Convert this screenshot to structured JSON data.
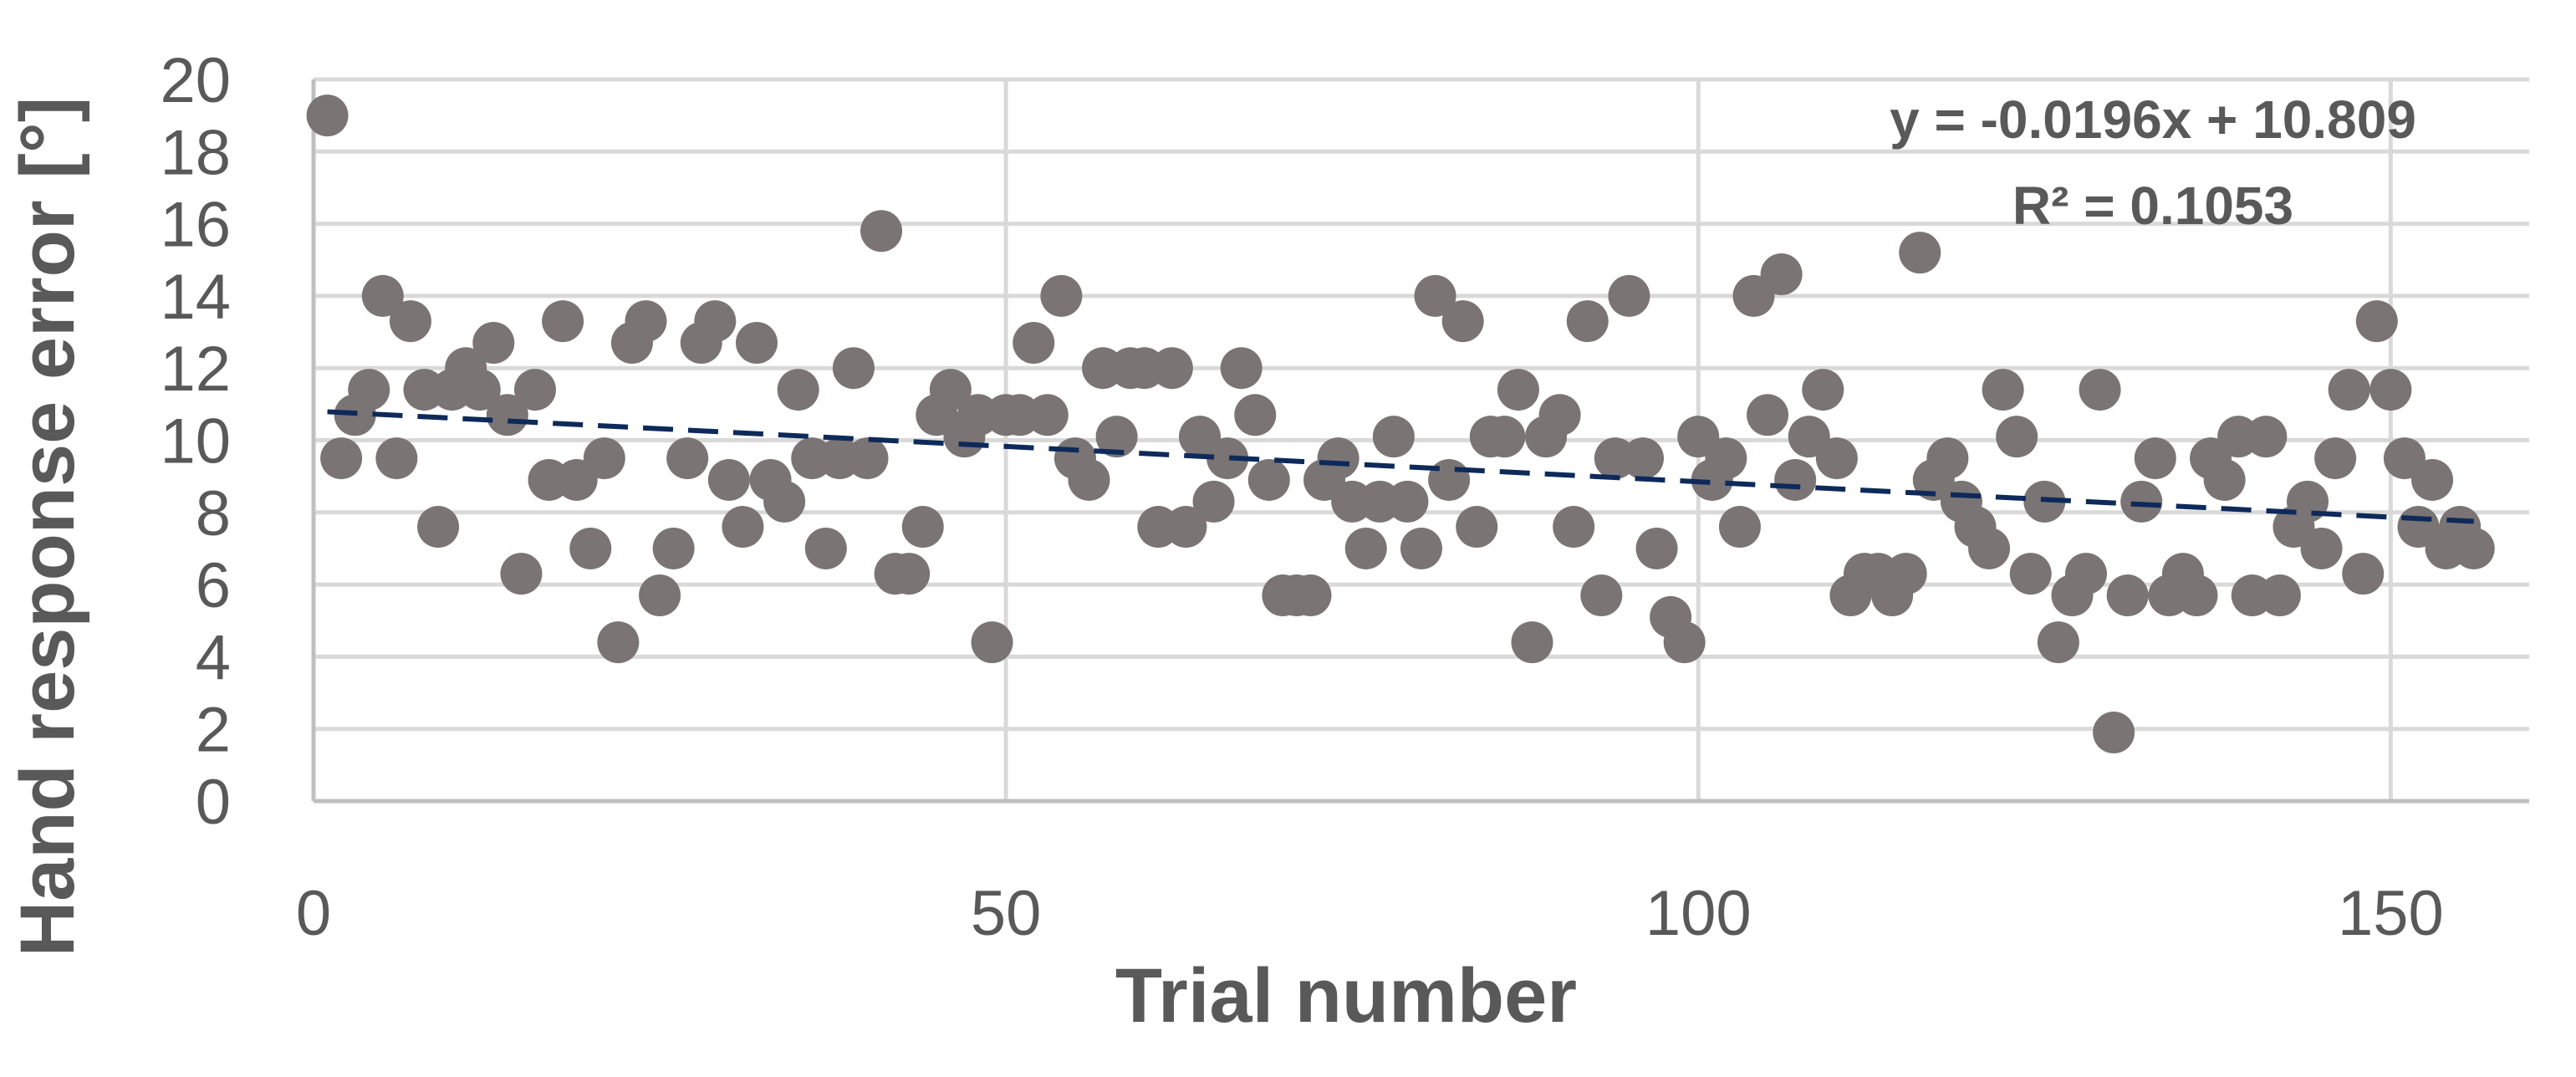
{
  "chart_data": {
    "type": "scatter",
    "xlabel": "Trial number",
    "ylabel": "Hand response error [°]",
    "xlim": [
      0,
      160
    ],
    "ylim": [
      0,
      20
    ],
    "xticks": [
      0,
      50,
      100,
      150
    ],
    "yticks": [
      0,
      2,
      4,
      6,
      8,
      10,
      12,
      14,
      16,
      18,
      20
    ],
    "grid": true,
    "colors": {
      "points": "#7a7474",
      "trendline": "#0e2a5a",
      "grid": "#d9d9d9",
      "text": "#595959"
    },
    "series": [
      {
        "x": [
          1,
          2,
          3,
          4,
          5,
          6,
          7,
          8,
          9,
          10,
          11,
          12,
          13,
          14,
          15,
          16,
          17,
          18,
          19,
          20,
          21,
          22,
          23,
          24,
          25,
          26,
          27,
          28,
          29,
          30,
          31,
          32,
          33,
          34,
          35,
          36,
          37,
          38,
          39,
          40,
          41,
          42,
          43,
          44,
          45,
          46,
          47,
          48,
          49,
          50,
          51,
          52,
          53,
          54,
          55,
          56,
          57,
          58,
          59,
          60,
          61,
          62,
          63,
          64,
          65,
          66,
          67,
          68,
          69,
          70,
          71,
          72,
          73,
          74,
          75,
          76,
          77,
          78,
          79,
          80,
          81,
          82,
          83,
          84,
          85,
          86,
          87,
          88,
          89,
          90,
          91,
          92,
          93,
          94,
          95,
          96,
          97,
          98,
          99,
          100,
          101,
          102,
          103,
          104,
          105,
          106,
          107,
          108,
          109,
          110,
          111,
          112,
          113,
          114,
          115,
          116,
          117,
          118,
          119,
          120,
          121,
          122,
          123,
          124,
          125,
          126,
          127,
          128,
          129,
          130,
          131,
          132,
          133,
          134,
          135,
          136,
          137,
          138,
          139,
          140,
          141,
          142,
          143,
          144,
          145,
          146,
          147,
          148,
          149,
          150,
          151,
          152,
          153,
          154,
          155,
          156
        ],
        "y": [
          19.0,
          9.5,
          10.7,
          11.4,
          14.0,
          9.5,
          13.3,
          11.4,
          7.6,
          11.4,
          12.0,
          11.4,
          12.7,
          10.7,
          6.3,
          11.4,
          8.9,
          13.3,
          8.9,
          7.0,
          9.5,
          4.4,
          12.7,
          13.3,
          5.7,
          7.0,
          9.5,
          12.7,
          13.3,
          8.9,
          7.6,
          12.7,
          8.9,
          8.3,
          11.4,
          9.5,
          7.0,
          9.5,
          12.0,
          9.5,
          15.8,
          6.3,
          6.3,
          7.6,
          10.7,
          11.4,
          10.1,
          10.7,
          4.4,
          10.7,
          10.7,
          12.7,
          10.7,
          14.0,
          9.5,
          8.9,
          12.0,
          10.1,
          12.0,
          12.0,
          7.6,
          12.0,
          7.6,
          10.1,
          8.3,
          9.5,
          12.0,
          10.7,
          8.9,
          5.7,
          5.7,
          5.7,
          8.9,
          9.5,
          8.3,
          7.0,
          8.3,
          10.1,
          8.3,
          7.0,
          14.0,
          8.9,
          13.3,
          7.6,
          10.1,
          10.1,
          11.4,
          4.4,
          10.1,
          10.7,
          7.6,
          13.3,
          5.7,
          9.5,
          14.0,
          9.5,
          7.0,
          5.1,
          4.4,
          10.1,
          8.9,
          9.5,
          7.6,
          14.0,
          10.7,
          14.6,
          8.9,
          10.1,
          11.4,
          9.5,
          5.7,
          6.3,
          6.3,
          5.7,
          6.3,
          15.2,
          8.9,
          9.5,
          8.3,
          7.6,
          7.0,
          11.4,
          10.1,
          6.3,
          8.3,
          4.4,
          5.7,
          6.3,
          11.4,
          1.9,
          5.7,
          8.3,
          9.5,
          5.7,
          6.3,
          5.7,
          9.5,
          8.9,
          10.1,
          5.7,
          10.1,
          5.7,
          7.6,
          8.3,
          7.0,
          9.5,
          11.4,
          6.3,
          13.3,
          11.4,
          9.5,
          7.6,
          8.9,
          7.0,
          7.6,
          7.0
        ]
      }
    ],
    "trendline": {
      "type": "linear",
      "slope": -0.0196,
      "intercept": 10.809,
      "x_range": [
        1,
        156
      ],
      "equation": "y = -0.0196x + 10.809",
      "r_squared": "R² = 0.1053"
    }
  }
}
